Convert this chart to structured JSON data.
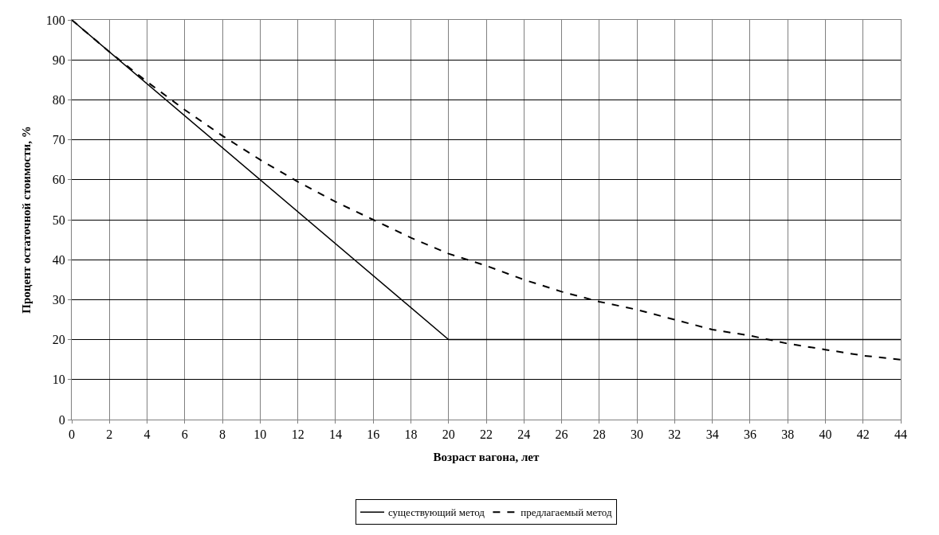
{
  "chart_data": {
    "type": "line",
    "xlabel": "Возраст вагона, лет",
    "ylabel": "Процент остаточной стоимости, %",
    "xlim": [
      0,
      44
    ],
    "xticks": [
      0,
      2,
      4,
      6,
      8,
      10,
      12,
      14,
      16,
      18,
      20,
      22,
      24,
      26,
      28,
      30,
      32,
      34,
      36,
      38,
      40,
      42,
      44
    ],
    "ylim": [
      0,
      100
    ],
    "yticks": [
      0,
      10,
      20,
      30,
      40,
      50,
      60,
      70,
      80,
      90,
      100
    ],
    "grid": true,
    "legend": "bottom",
    "marker": "none",
    "series": [
      {
        "name": "существующий метод",
        "color": "#000000",
        "line_style": "solid",
        "x": [
          0,
          20,
          44
        ],
        "values": [
          100,
          20,
          20
        ]
      },
      {
        "name": "предлагаемый метод",
        "color": "#000000",
        "line_style": "dashed",
        "x": [
          0,
          2,
          4,
          6,
          8,
          10,
          12,
          14,
          16,
          18,
          20,
          22,
          24,
          26,
          28,
          30,
          32,
          34,
          36,
          38,
          40,
          42,
          44
        ],
        "values": [
          100,
          92,
          84.5,
          77.5,
          71,
          65,
          59.5,
          54.5,
          50,
          45.5,
          41.5,
          38.5,
          35,
          32,
          29.5,
          27.5,
          25,
          22.5,
          21,
          19,
          17.5,
          16,
          15
        ]
      }
    ]
  }
}
